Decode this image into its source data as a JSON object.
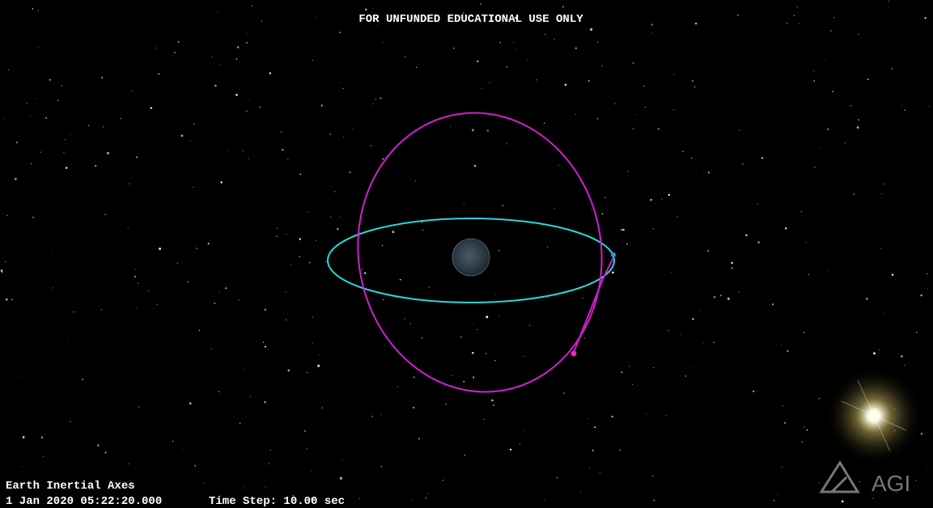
{
  "banner": "FOR UNFUNDED EDUCATIONAL USE ONLY",
  "status": {
    "axes": "Earth Inertial Axes",
    "time": "1 Jan 2020 05:22:20.000",
    "time_step": "Time Step: 10.00 sec"
  },
  "logo": "AGI"
}
